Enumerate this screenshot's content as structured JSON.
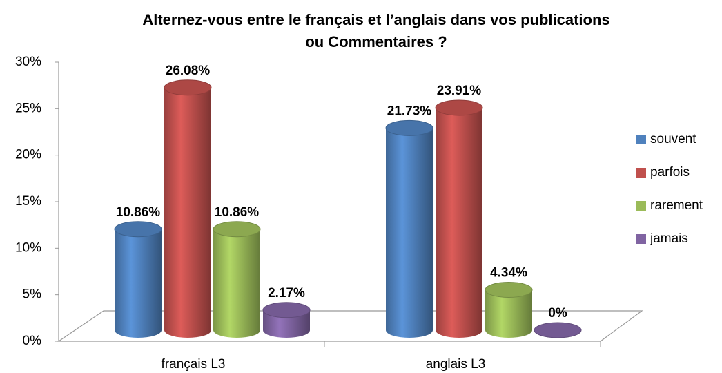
{
  "chart_data": {
    "type": "bar3d",
    "title": [
      "Alternez-vous entre le français et l’anglais dans vos publications",
      "ou Commentaires ?"
    ],
    "categories": [
      "français L3",
      "anglais L3"
    ],
    "series": [
      {
        "name": "souvent",
        "color": "#4f81bd",
        "values": [
          10.86,
          21.73
        ],
        "value_labels": [
          "10.86%",
          "21.73%"
        ]
      },
      {
        "name": "parfois",
        "color": "#c0504d",
        "values": [
          26.08,
          23.91
        ],
        "value_labels": [
          "26.08%",
          "23.91%"
        ]
      },
      {
        "name": "rarement",
        "color": "#9bbb59",
        "values": [
          10.86,
          4.34
        ],
        "value_labels": [
          "10.86%",
          "4.34%"
        ]
      },
      {
        "name": "jamais",
        "color": "#8064a2",
        "values": [
          2.17,
          0
        ],
        "value_labels": [
          "2.17%",
          "0%"
        ]
      }
    ],
    "ylim": [
      0,
      30
    ],
    "yticks": [
      {
        "value": 0,
        "label": "0%"
      },
      {
        "value": 5,
        "label": "5%"
      },
      {
        "value": 10,
        "label": "10%"
      },
      {
        "value": 15,
        "label": "15%"
      },
      {
        "value": 20,
        "label": "20%"
      },
      {
        "value": 25,
        "label": "25%"
      },
      {
        "value": 30,
        "label": "30%"
      }
    ],
    "legend": "right",
    "grid": false
  }
}
